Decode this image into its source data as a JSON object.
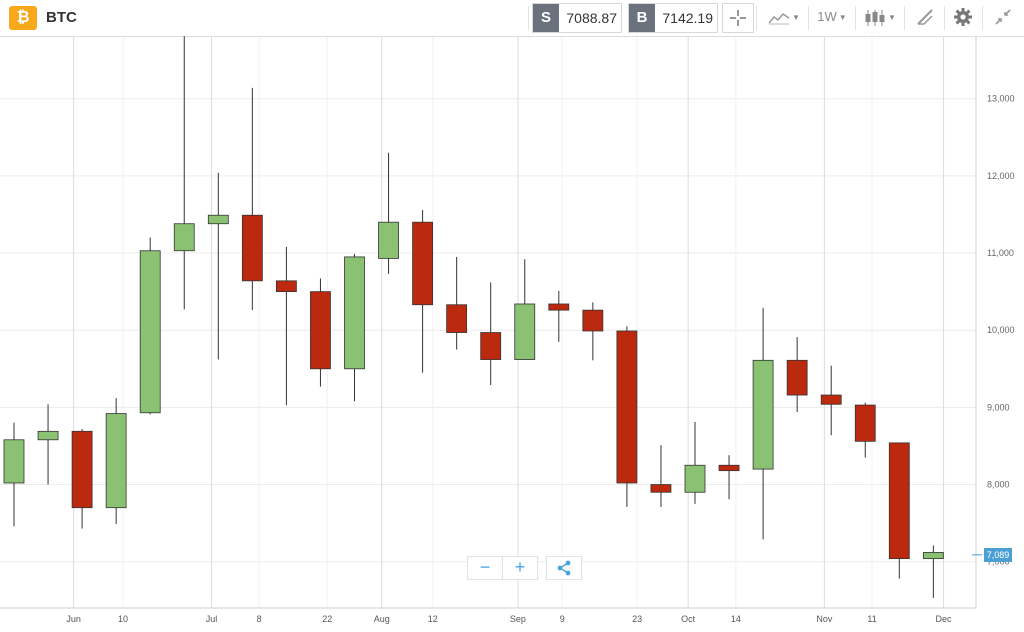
{
  "header": {
    "coin_symbol": "₿",
    "ticker": "BTC",
    "sell_tag": "S",
    "sell_price": "7088.87",
    "buy_tag": "B",
    "buy_price": "7142.19",
    "interval": "1W"
  },
  "toolbar_icons": [
    "crosshair-icon",
    "line-chart-icon",
    "candlestick-icon",
    "draw-icon",
    "gear-icon",
    "collapse-icon"
  ],
  "colors": {
    "up": "#8bc173",
    "down": "#bb2a0e",
    "accent": "#4a9fd5",
    "coin": "#f7a81b"
  },
  "chart_data": {
    "type": "candlestick",
    "y_ticks": [
      "7,000",
      "8,000",
      "9,000",
      "10,000",
      "11,000",
      "12,000",
      "13,000"
    ],
    "y_tick_values": [
      7000,
      8000,
      9000,
      10000,
      11000,
      12000,
      13000
    ],
    "ylim": [
      6400,
      13800
    ],
    "grid": true,
    "x_ticks": [
      "Jun",
      "10",
      "Jul",
      "8",
      "22",
      "Aug",
      "12",
      "Sep",
      "9",
      "23",
      "Oct",
      "14",
      "Nov",
      "11",
      "Dec"
    ],
    "x_tick_candle_index": [
      1.75,
      3.2,
      5.8,
      7.2,
      9.2,
      10.8,
      12.3,
      14.8,
      16.1,
      18.3,
      19.8,
      21.2,
      23.8,
      25.2,
      27.3
    ],
    "last_price_label": "7,089",
    "last_price": 7089,
    "candles": [
      {
        "o": 8020,
        "h": 8800,
        "l": 7460,
        "c": 8580
      },
      {
        "o": 8580,
        "h": 9040,
        "l": 8000,
        "c": 8690
      },
      {
        "o": 8690,
        "h": 8720,
        "l": 7430,
        "c": 7700
      },
      {
        "o": 7700,
        "h": 9120,
        "l": 7490,
        "c": 8920
      },
      {
        "o": 8930,
        "h": 11200,
        "l": 8910,
        "c": 11030
      },
      {
        "o": 11030,
        "h": 13810,
        "l": 10270,
        "c": 11380
      },
      {
        "o": 11380,
        "h": 12040,
        "l": 9620,
        "c": 11490
      },
      {
        "o": 11490,
        "h": 13140,
        "l": 10260,
        "c": 10640
      },
      {
        "o": 10640,
        "h": 11080,
        "l": 9030,
        "c": 10500
      },
      {
        "o": 10500,
        "h": 10670,
        "l": 9270,
        "c": 9500
      },
      {
        "o": 9500,
        "h": 10990,
        "l": 9080,
        "c": 10950
      },
      {
        "o": 10930,
        "h": 12300,
        "l": 10730,
        "c": 11400
      },
      {
        "o": 11400,
        "h": 11560,
        "l": 9450,
        "c": 10330
      },
      {
        "o": 10330,
        "h": 10950,
        "l": 9750,
        "c": 9970
      },
      {
        "o": 9970,
        "h": 10620,
        "l": 9290,
        "c": 9620
      },
      {
        "o": 9620,
        "h": 10920,
        "l": 9620,
        "c": 10340
      },
      {
        "o": 10340,
        "h": 10510,
        "l": 9850,
        "c": 10260
      },
      {
        "o": 10260,
        "h": 10360,
        "l": 9610,
        "c": 9990
      },
      {
        "o": 9990,
        "h": 10050,
        "l": 7710,
        "c": 8020
      },
      {
        "o": 8000,
        "h": 8510,
        "l": 7710,
        "c": 7900
      },
      {
        "o": 7900,
        "h": 8810,
        "l": 7750,
        "c": 8250
      },
      {
        "o": 8250,
        "h": 8380,
        "l": 7810,
        "c": 8180
      },
      {
        "o": 8200,
        "h": 10290,
        "l": 7290,
        "c": 9610
      },
      {
        "o": 9610,
        "h": 9910,
        "l": 8940,
        "c": 9160
      },
      {
        "o": 9160,
        "h": 9540,
        "l": 8640,
        "c": 9040
      },
      {
        "o": 9030,
        "h": 9060,
        "l": 8350,
        "c": 8560
      },
      {
        "o": 8540,
        "h": 8540,
        "l": 6780,
        "c": 7040
      },
      {
        "o": 7040,
        "h": 7210,
        "l": 6530,
        "c": 7120
      }
    ]
  }
}
